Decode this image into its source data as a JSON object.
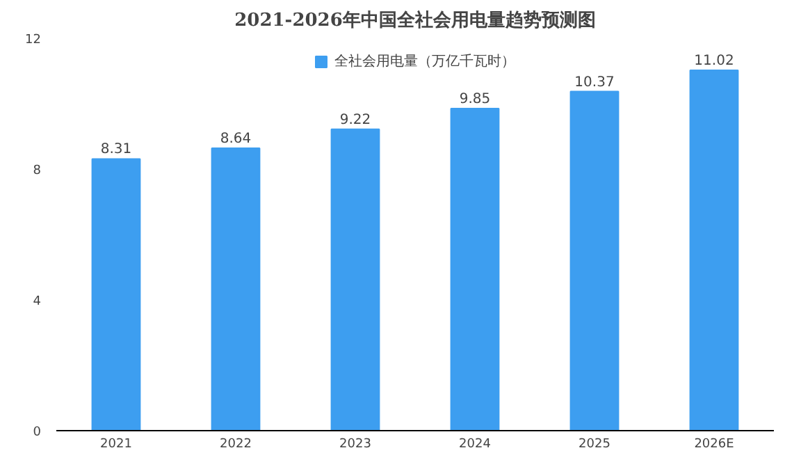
{
  "chart_data": {
    "type": "bar",
    "title": "2021-2026年中国全社会用电量趋势预测图",
    "categories": [
      "2021",
      "2022",
      "2023",
      "2024",
      "2025",
      "2026E"
    ],
    "series": [
      {
        "name": "全社会用电量（万亿千瓦时）",
        "color": "#3d9ef0",
        "values": [
          8.31,
          8.64,
          9.22,
          9.85,
          10.37,
          11.02
        ]
      }
    ],
    "ylim": [
      0,
      12
    ],
    "yticks": [
      0,
      4,
      8,
      12
    ],
    "grid": false,
    "legend": "top",
    "data_labels": true
  }
}
